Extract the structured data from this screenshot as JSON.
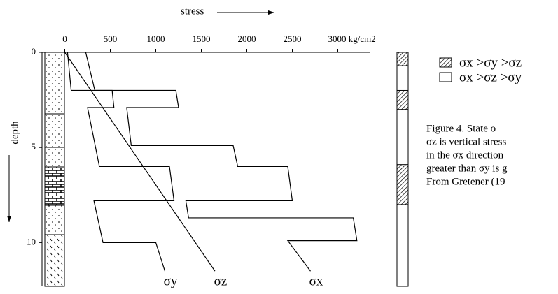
{
  "chart_data": {
    "type": "line",
    "x_label": "stress",
    "y_label": "depth",
    "xlim": [
      -250,
      3350
    ],
    "ylim": [
      0,
      12.3
    ],
    "xticks": [
      0,
      500,
      1000,
      1500,
      2000,
      2500,
      {
        "value": 3000,
        "label": "3000 kg/cm2"
      }
    ],
    "yticks": [
      0,
      5,
      10
    ],
    "series": [
      {
        "name": "σx",
        "color": "#000000",
        "x": [
          230,
          330,
          1220,
          1250,
          680,
          730,
          1850,
          1900,
          2450,
          2500,
          1330,
          1360,
          3170,
          3210,
          2450,
          2700
        ],
        "y": [
          0,
          2.0,
          2.0,
          2.9,
          2.9,
          4.9,
          4.9,
          6.0,
          6.0,
          7.8,
          7.8,
          8.7,
          8.7,
          9.9,
          9.9,
          11.5
        ]
      },
      {
        "name": "σy",
        "color": "#000000",
        "x": [
          30,
          70,
          520,
          540,
          250,
          380,
          1150,
          1200,
          320,
          420,
          1000,
          1100
        ],
        "y": [
          0,
          2.0,
          2.0,
          2.9,
          2.9,
          6.0,
          6.0,
          7.8,
          7.8,
          10.0,
          10.0,
          11.5
        ]
      },
      {
        "name": "σz",
        "color": "#000000",
        "x": [
          0,
          1650
        ],
        "y": [
          0,
          11.5
        ]
      }
    ],
    "regime_intervals": [
      [
        0,
        0.7
      ],
      [
        2.0,
        3.0
      ],
      [
        5.9,
        8.0
      ]
    ],
    "legend": [
      {
        "label": "σx >σy >σz",
        "hatched": true
      },
      {
        "label": "σx >σz >σy",
        "hatched": false
      }
    ],
    "caption": [
      "Figure 4.    State o",
      "σz is vertical stress",
      "in the σx direction",
      "greater than σy is g",
      "From Gretener (19"
    ]
  }
}
